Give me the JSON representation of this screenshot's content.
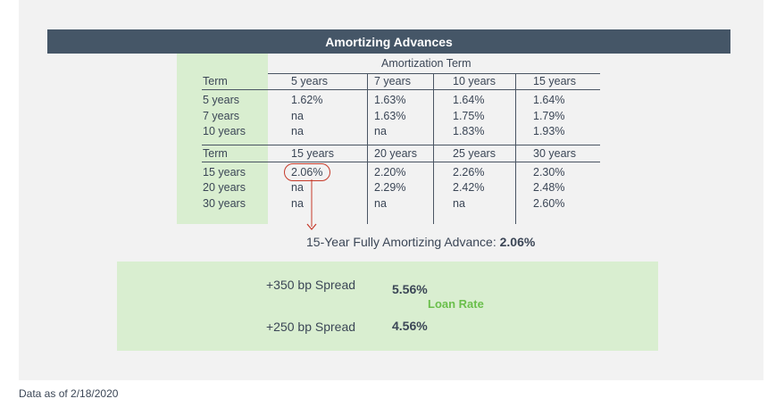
{
  "title": "Amortizing Advances",
  "amortization_label": "Amortization Term",
  "table1": {
    "term_header": "Term",
    "columns": [
      "5 years",
      "7 years",
      "10 years",
      "15 years"
    ],
    "rows": [
      {
        "term": "5 years",
        "values": [
          "1.62%",
          "1.63%",
          "1.64%",
          "1.64%"
        ]
      },
      {
        "term": "7 years",
        "values": [
          "na",
          "1.63%",
          "1.75%",
          "1.79%"
        ]
      },
      {
        "term": "10 years",
        "values": [
          "na",
          "na",
          "1.83%",
          "1.93%"
        ]
      }
    ]
  },
  "table2": {
    "term_header": "Term",
    "columns": [
      "15 years",
      "20 years",
      "25 years",
      "30 years"
    ],
    "rows": [
      {
        "term": "15 years",
        "values": [
          "2.06%",
          "2.20%",
          "2.26%",
          "2.30%"
        ]
      },
      {
        "term": "20 years",
        "values": [
          "na",
          "2.29%",
          "2.42%",
          "2.48%"
        ]
      },
      {
        "term": "30 years",
        "values": [
          "na",
          "na",
          "na",
          "2.60%"
        ]
      }
    ]
  },
  "highlight": {
    "label": "15-Year Fully Amortizing Advance: ",
    "value": "2.06%",
    "circle_color": "#c63a2a"
  },
  "spreads": {
    "spread1_label": "+350 bp Spread",
    "spread1_rate": "5.56%",
    "spread2_label": "+250 bp Spread",
    "spread2_rate": "4.56%",
    "loan_rate_label": "Loan Rate",
    "arrow_color": "#6abf4b"
  },
  "footnote": "Data as of 2/18/2020",
  "colors": {
    "title_bar": "#455667",
    "term_column": "#d9eed0",
    "panel": "#f2f2f2",
    "text": "#3b4656"
  }
}
